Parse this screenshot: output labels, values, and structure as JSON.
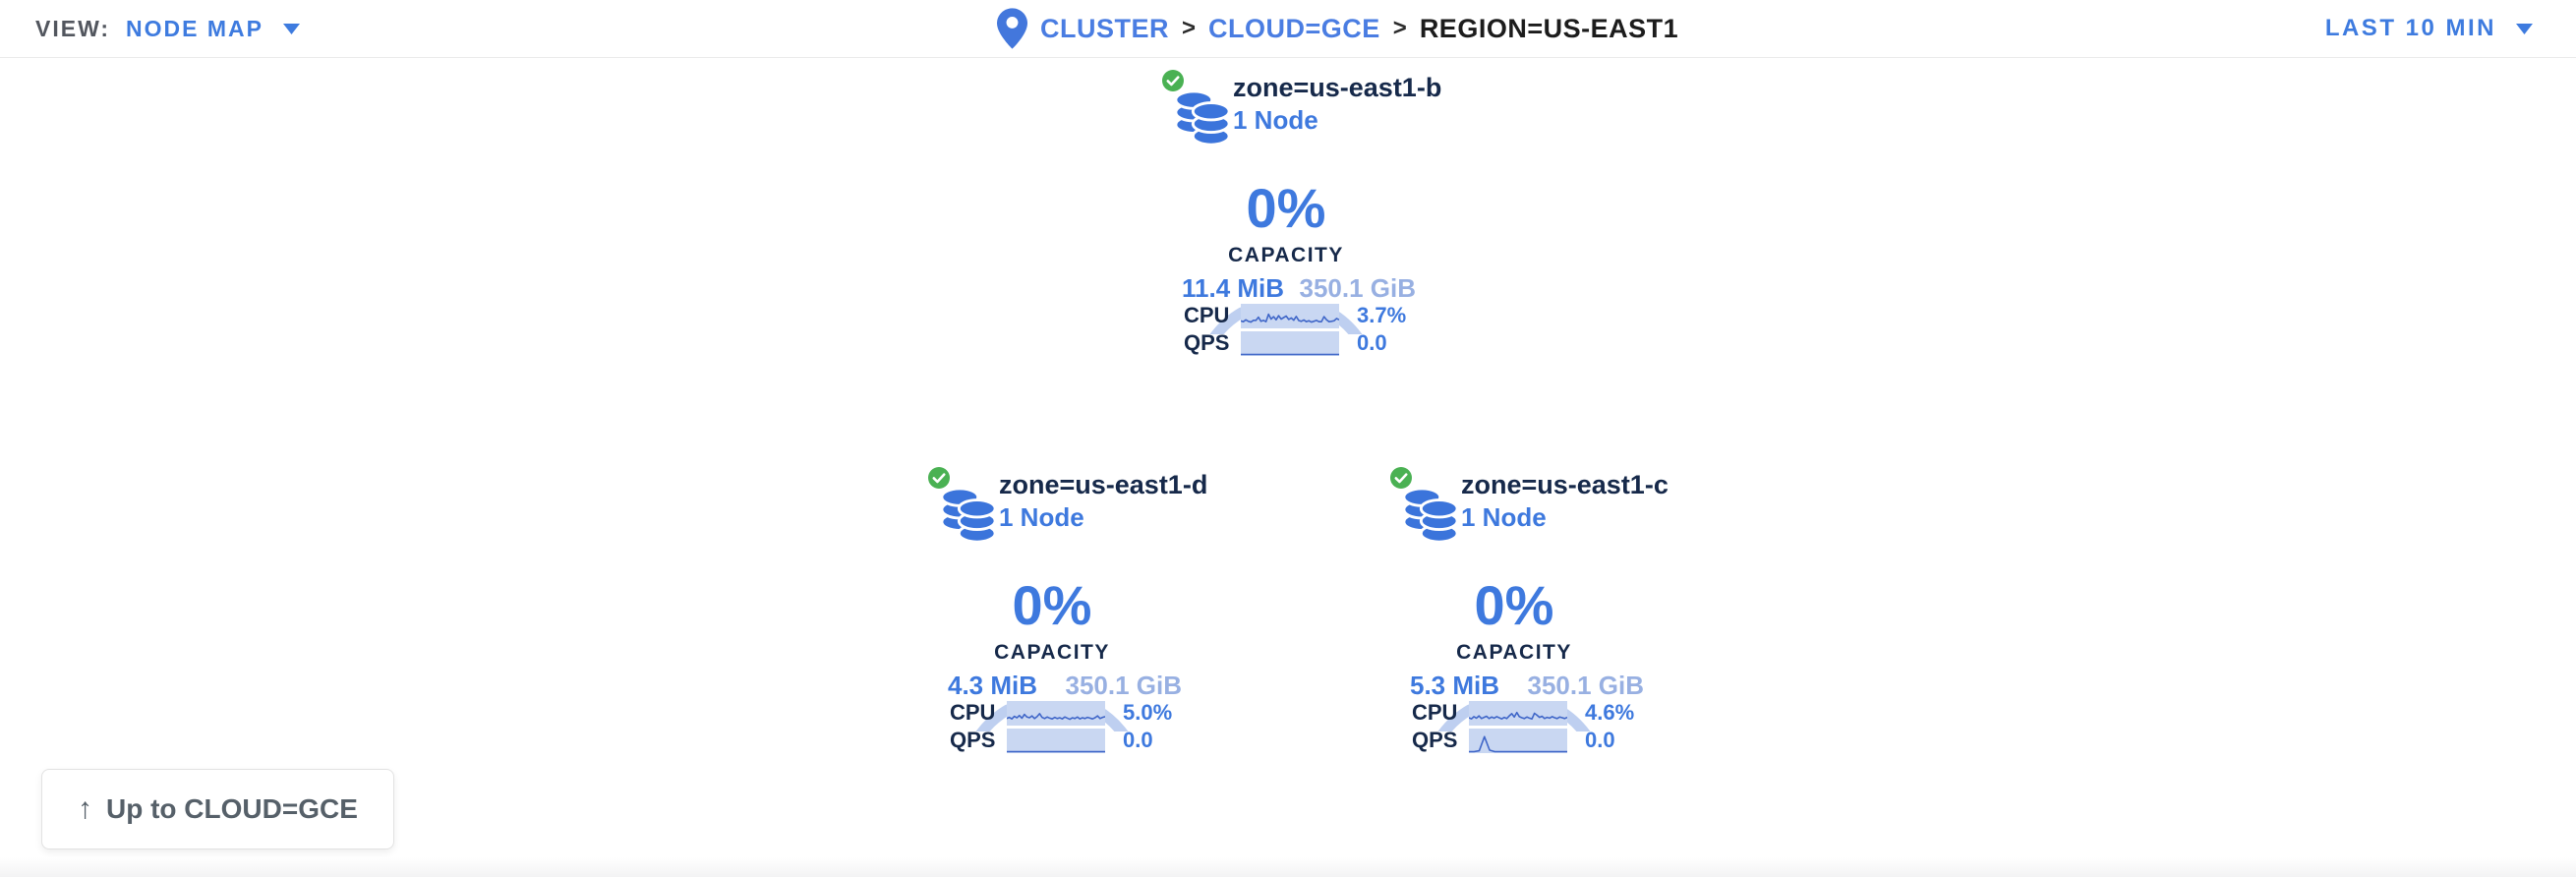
{
  "header": {
    "view_label": "VIEW:",
    "view_value": "NODE MAP",
    "breadcrumb": {
      "icon": "location-pin-icon",
      "separator": ">",
      "items": [
        {
          "label": "CLUSTER",
          "clickable": true
        },
        {
          "label": "CLOUD=GCE",
          "clickable": true
        },
        {
          "label": "REGION=US-EAST1",
          "clickable": false
        }
      ]
    },
    "time_range": "LAST 10 MIN",
    "dropdown_icon": "chevron-down-icon"
  },
  "zones": [
    {
      "name": "zone=us-east1-b",
      "nodes_label": "1 Node",
      "status_icon": "green-check-icon",
      "icon": "db-stack-icon",
      "capacity_pct": "0%",
      "capacity_label": "CAPACITY",
      "capacity_used": "11.4 MiB",
      "capacity_total": "350.1 GiB",
      "cpu_label": "CPU",
      "cpu_value": "3.7%",
      "qps_label": "QPS",
      "qps_value": "0.0",
      "cpu_series": [
        0.32,
        0.28,
        0.38,
        0.3,
        0.26,
        0.35,
        0.35,
        0.52,
        0.3,
        0.35,
        0.28,
        0.68,
        0.42,
        0.55,
        0.38,
        0.6,
        0.42,
        0.5,
        0.58,
        0.4,
        0.48,
        0.36,
        0.56,
        0.34,
        0.3,
        0.37,
        0.28,
        0.33,
        0.26,
        0.3,
        0.35,
        0.28,
        0.28,
        0.55,
        0.38,
        0.28,
        0.3,
        0.33,
        0.45,
        0.38
      ],
      "qps_series": [
        0,
        0,
        0,
        0,
        0,
        0,
        0,
        0,
        0,
        0,
        0,
        0,
        0,
        0,
        0,
        0,
        0,
        0,
        0,
        0
      ]
    },
    {
      "name": "zone=us-east1-d",
      "nodes_label": "1 Node",
      "status_icon": "green-check-icon",
      "icon": "db-stack-icon",
      "capacity_pct": "0%",
      "capacity_label": "CAPACITY",
      "capacity_used": "4.3 MiB",
      "capacity_total": "350.1 GiB",
      "cpu_label": "CPU",
      "cpu_value": "5.0%",
      "qps_label": "QPS",
      "qps_value": "0.0",
      "cpu_series": [
        0.3,
        0.36,
        0.28,
        0.42,
        0.34,
        0.46,
        0.32,
        0.52,
        0.38,
        0.34,
        0.44,
        0.3,
        0.4,
        0.56,
        0.36,
        0.3,
        0.38,
        0.32,
        0.28,
        0.36,
        0.3,
        0.34,
        0.28,
        0.38,
        0.32,
        0.26,
        0.34,
        0.3,
        0.38,
        0.28,
        0.34,
        0.3,
        0.36,
        0.32,
        0.28,
        0.34,
        0.44,
        0.3,
        0.36,
        0.4
      ],
      "qps_series": [
        0,
        0,
        0,
        0,
        0,
        0,
        0,
        0,
        0,
        0,
        0,
        0,
        0,
        0,
        0,
        0,
        0,
        0,
        0,
        0
      ]
    },
    {
      "name": "zone=us-east1-c",
      "nodes_label": "1 Node",
      "status_icon": "green-check-icon",
      "icon": "db-stack-icon",
      "capacity_pct": "0%",
      "capacity_label": "CAPACITY",
      "capacity_used": "5.3 MiB",
      "capacity_total": "350.1 GiB",
      "cpu_label": "CPU",
      "cpu_value": "4.6%",
      "qps_label": "QPS",
      "qps_value": "0.0",
      "cpu_series": [
        0.34,
        0.28,
        0.4,
        0.32,
        0.44,
        0.3,
        0.36,
        0.42,
        0.3,
        0.38,
        0.32,
        0.4,
        0.34,
        0.28,
        0.36,
        0.3,
        0.44,
        0.56,
        0.38,
        0.62,
        0.4,
        0.34,
        0.3,
        0.38,
        0.32,
        0.28,
        0.58,
        0.48,
        0.36,
        0.42,
        0.3,
        0.36,
        0.32,
        0.4,
        0.34,
        0.3,
        0.38,
        0.34,
        0.3,
        0.36
      ],
      "qps_series": [
        0,
        0,
        0.05,
        0.8,
        0.08,
        0,
        0,
        0,
        0,
        0,
        0,
        0,
        0,
        0,
        0,
        0,
        0,
        0,
        0,
        0
      ]
    }
  ],
  "up_button": {
    "icon": "up-arrow-icon",
    "arrow": "↑",
    "label": "Up to CLOUD=GCE"
  },
  "colors": {
    "accent_blue": "#3e79de",
    "link_blue": "#4a7de2",
    "light_blue_total": "#98b0e2",
    "gauge_arc": "#becff0",
    "spark_fill": "#c9d7f2",
    "spark_line": "#3f66c8",
    "status_green": "#4ab153",
    "dark_navy": "#16294a",
    "gray_text": "#566069"
  }
}
